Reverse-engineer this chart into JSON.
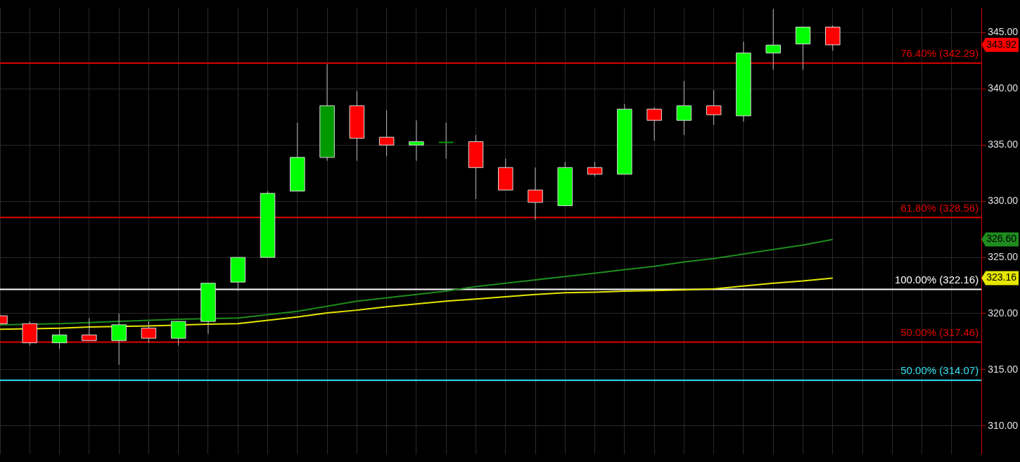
{
  "chart_data": {
    "type": "candlestick",
    "categories": [
      null,
      null,
      null,
      null,
      null,
      null,
      null,
      null,
      null,
      null,
      null,
      null,
      null,
      null,
      null,
      null,
      null,
      null,
      null,
      null,
      null,
      null,
      null,
      null,
      null,
      null,
      null,
      null,
      null,
      null,
      null,
      null,
      null,
      null
    ],
    "ohlc": [
      [
        319.8,
        319.9,
        319.0,
        319.1
      ],
      [
        319.1,
        319.3,
        317.15,
        317.4
      ],
      [
        317.4,
        318.6,
        316.85,
        318.1
      ],
      [
        318.1,
        319.6,
        317.6,
        317.6
      ],
      [
        317.6,
        320.0,
        315.45,
        319.0
      ],
      [
        318.7,
        319.3,
        317.4,
        317.8
      ],
      [
        317.8,
        319.3,
        317.15,
        319.3
      ],
      [
        319.3,
        322.75,
        318.2,
        322.7
      ],
      [
        322.8,
        325.0,
        322.0,
        325.0
      ],
      [
        325.0,
        330.9,
        325.0,
        330.7
      ],
      [
        330.9,
        337.0,
        330.9,
        333.9
      ],
      [
        333.9,
        342.2,
        333.6,
        338.5
      ],
      [
        338.5,
        339.8,
        333.6,
        335.6
      ],
      [
        335.7,
        338.1,
        334.0,
        335.0
      ],
      [
        335.0,
        337.2,
        333.6,
        335.3
      ],
      [
        335.3,
        337.0,
        333.8,
        335.3
      ],
      [
        335.3,
        335.9,
        330.2,
        333.0
      ],
      [
        333.0,
        333.8,
        331.0,
        331.0
      ],
      [
        331.0,
        333.0,
        328.35,
        329.9
      ],
      [
        329.6,
        333.5,
        329.6,
        333.0
      ],
      [
        333.0,
        333.5,
        332.2,
        332.4
      ],
      [
        332.4,
        338.65,
        332.4,
        338.2
      ],
      [
        338.2,
        338.35,
        335.4,
        337.2
      ],
      [
        337.2,
        340.7,
        335.9,
        338.5
      ],
      [
        338.5,
        339.9,
        336.8,
        337.7
      ],
      [
        337.6,
        344.2,
        337.1,
        343.2
      ],
      [
        343.2,
        347.1,
        341.7,
        343.9
      ],
      [
        344.0,
        345.5,
        341.7,
        345.5
      ],
      [
        345.5,
        345.65,
        343.4,
        343.92
      ],
      null,
      null,
      null,
      null,
      null
    ],
    "colors": [
      "#ff0000",
      "#ff0000",
      "#00ff00",
      "#ff0000",
      "#00ff00",
      "#ff0000",
      "#00ff00",
      "#00ff00",
      "#00ff00",
      "#00ff00",
      "#00ff00",
      "#009900",
      "#ff0000",
      "#ff0000",
      "#00ff00",
      "#009900",
      "#ff0000",
      "#ff0000",
      "#ff0000",
      "#00ff00",
      "#ff0000",
      "#00ff00",
      "#ff0000",
      "#00ff00",
      "#ff0000",
      "#00ff00",
      "#00ff00",
      "#00ff00",
      "#ff0000",
      null,
      null,
      null,
      null,
      null
    ],
    "series": [
      {
        "type": "line",
        "color": "#1e8c1e",
        "values": [
          319.0,
          null,
          319.1,
          319.2,
          319.3,
          319.4,
          319.5,
          null,
          319.6,
          319.9,
          320.2,
          320.65,
          321.1,
          321.4,
          321.7,
          322.0,
          322.4,
          322.7,
          323.0,
          323.3,
          323.6,
          323.9,
          324.2,
          324.6,
          324.9,
          325.3,
          325.7,
          326.1,
          326.6,
          null,
          null,
          null,
          null,
          null
        ]
      },
      {
        "type": "line",
        "color": "#e6e600",
        "values": [
          318.6,
          null,
          318.7,
          318.8,
          null,
          318.9,
          null,
          319.05,
          319.1,
          319.4,
          319.7,
          320.05,
          320.3,
          320.6,
          320.85,
          321.1,
          321.3,
          321.5,
          321.7,
          321.85,
          321.9,
          322.0,
          322.05,
          322.1,
          322.2,
          322.45,
          322.7,
          322.9,
          323.16,
          null,
          null,
          null,
          null,
          null
        ]
      }
    ],
    "ylim": [
      307.5,
      347.2
    ],
    "yticks": [
      {
        "value": 310,
        "label": "310.00"
      },
      {
        "value": 315,
        "label": "315.00"
      },
      {
        "value": 320,
        "label": "320.00"
      },
      {
        "value": 325,
        "label": "325.00"
      },
      {
        "value": 330,
        "label": "330.00"
      },
      {
        "value": 335,
        "label": "335.00"
      },
      {
        "value": 340,
        "label": "340.00"
      },
      {
        "value": 345,
        "label": "345.00"
      }
    ],
    "ref_lines": [
      {
        "axis": "y",
        "value": 342.29,
        "label": "76.40% (342.29)",
        "color": "#e00000"
      },
      {
        "axis": "y",
        "value": 328.56,
        "label": "61.80% (328.56)",
        "color": "#e00000"
      },
      {
        "axis": "y",
        "value": 322.16,
        "label": "100.00% (322.16)",
        "color": "#ffffff"
      },
      {
        "axis": "y",
        "value": 317.46,
        "label": "50.00% (317.46)",
        "color": "#e00000"
      },
      {
        "axis": "y",
        "value": 314.07,
        "label": "50.00% (314.07)",
        "color": "#33e0f0"
      }
    ],
    "annotations": [
      "343.92",
      "326.60",
      "323.16"
    ],
    "grid": true,
    "legend": false,
    "tick_labels": "y",
    "marker": "none"
  }
}
